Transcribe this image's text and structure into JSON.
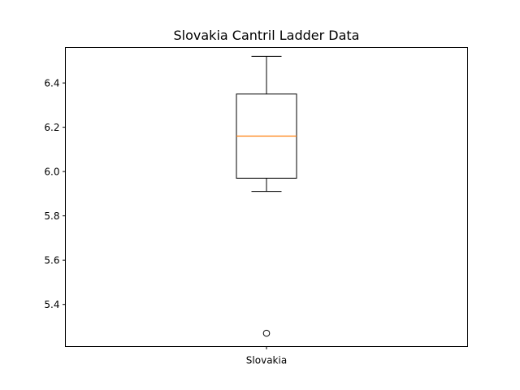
{
  "chart_data": {
    "type": "box",
    "title": "Slovakia Cantril Ladder Data",
    "xlabel": "",
    "ylabel": "",
    "categories": [
      "Slovakia"
    ],
    "ylim": [
      5.21,
      6.56
    ],
    "yticks": [
      5.4,
      5.6,
      5.8,
      6.0,
      6.2,
      6.4
    ],
    "ytick_labels": [
      "5.4",
      "5.6",
      "5.8",
      "6.0",
      "6.2",
      "6.4"
    ],
    "boxes": [
      {
        "category": "Slovakia",
        "whisker_low": 5.91,
        "q1": 5.97,
        "median": 6.16,
        "q3": 6.35,
        "whisker_high": 6.52,
        "outliers": [
          5.27
        ]
      }
    ],
    "grid": false,
    "legend": "none",
    "colors": {
      "box": "#000000",
      "median": "#ff7f0e",
      "axes": "#000000"
    }
  }
}
